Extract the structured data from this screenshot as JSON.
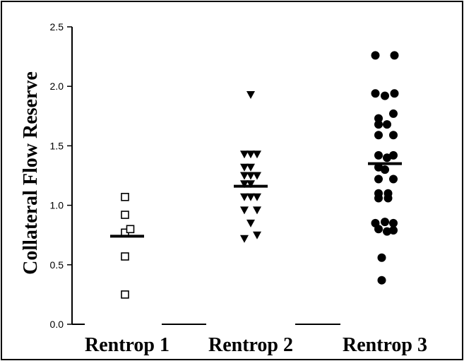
{
  "chart_data": {
    "type": "scatter",
    "title": "",
    "xlabel": "",
    "ylabel": "Collateral Flow Reserve",
    "ylim": [
      0,
      2.5
    ],
    "yticks": [
      "0.0",
      "0.5",
      "1.0",
      "1.5",
      "2.0",
      "2.5"
    ],
    "grid": false,
    "categories": [
      "Rentrop 1",
      "Rentrop 2",
      "Rentrop 3"
    ],
    "series": [
      {
        "category": "Rentrop 1",
        "marker": "open-square",
        "mean": 0.74,
        "points": [
          [
            -0.1,
            1.07
          ],
          [
            -0.1,
            0.92
          ],
          [
            -0.1,
            0.77
          ],
          [
            0.15,
            0.8
          ],
          [
            -0.1,
            0.57
          ],
          [
            -0.1,
            0.25
          ]
        ]
      },
      {
        "category": "Rentrop 2",
        "marker": "filled-triangle-down",
        "mean": 1.16,
        "points": [
          [
            0,
            1.93
          ],
          [
            -0.3,
            1.43
          ],
          [
            0,
            1.43
          ],
          [
            0.3,
            1.43
          ],
          [
            -0.3,
            1.32
          ],
          [
            0,
            1.32
          ],
          [
            -0.3,
            1.25
          ],
          [
            0,
            1.25
          ],
          [
            0.3,
            1.25
          ],
          [
            -0.3,
            1.18
          ],
          [
            0,
            1.18
          ],
          [
            -0.3,
            1.07
          ],
          [
            0,
            1.07
          ],
          [
            0.3,
            1.07
          ],
          [
            -0.3,
            0.96
          ],
          [
            0.3,
            0.96
          ],
          [
            0,
            0.85
          ],
          [
            -0.3,
            0.72
          ],
          [
            0.3,
            0.75
          ]
        ]
      },
      {
        "category": "Rentrop 3",
        "marker": "filled-circle",
        "mean": 1.35,
        "points": [
          [
            -0.45,
            2.26
          ],
          [
            0.45,
            2.26
          ],
          [
            -0.45,
            1.94
          ],
          [
            0.45,
            1.94
          ],
          [
            0,
            1.92
          ],
          [
            -0.3,
            1.73
          ],
          [
            0.4,
            1.77
          ],
          [
            -0.3,
            1.68
          ],
          [
            0.1,
            1.68
          ],
          [
            -0.3,
            1.59
          ],
          [
            0.4,
            1.59
          ],
          [
            0.4,
            1.42
          ],
          [
            -0.3,
            1.42
          ],
          [
            0.1,
            1.4
          ],
          [
            -0.3,
            1.32
          ],
          [
            0,
            1.3
          ],
          [
            -0.3,
            1.22
          ],
          [
            0.4,
            1.22
          ],
          [
            -0.3,
            1.1
          ],
          [
            0.15,
            1.1
          ],
          [
            -0.3,
            1.06
          ],
          [
            0.15,
            1.06
          ],
          [
            -0.45,
            0.85
          ],
          [
            0,
            0.86
          ],
          [
            0.4,
            0.85
          ],
          [
            -0.3,
            0.8
          ],
          [
            0.1,
            0.78
          ],
          [
            0.4,
            0.79
          ],
          [
            -0.15,
            0.56
          ],
          [
            -0.15,
            0.37
          ]
        ]
      }
    ]
  }
}
